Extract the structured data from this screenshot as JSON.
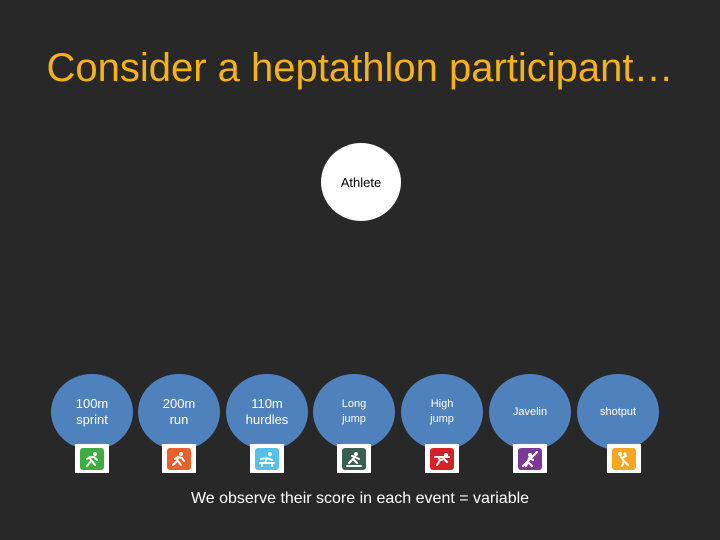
{
  "slide": {
    "title": "Consider a heptathlon participant…",
    "caption": "We observe their score in each event = variable"
  },
  "athlete": {
    "label": "Athlete"
  },
  "events": [
    {
      "line1": "100m",
      "line2": "sprint",
      "icon": "sprint-icon",
      "color": "#3cae3f"
    },
    {
      "line1": "200m",
      "line2": "run",
      "icon": "run-icon",
      "color": "#e8612c"
    },
    {
      "line1": "110m",
      "line2": "hurdles",
      "icon": "hurdles-icon",
      "color": "#56c1e8"
    },
    {
      "line1": "Long",
      "line2": "jump",
      "icon": "long-jump-icon",
      "color": "#3c5e52"
    },
    {
      "line1": "High",
      "line2": "jump",
      "icon": "high-jump-icon",
      "color": "#d4222b"
    },
    {
      "line1": "Javelin",
      "line2": "",
      "icon": "javelin-icon",
      "color": "#7b3a96"
    },
    {
      "line1": "shotput",
      "line2": "",
      "icon": "shotput-icon",
      "color": "#f6a623"
    }
  ]
}
